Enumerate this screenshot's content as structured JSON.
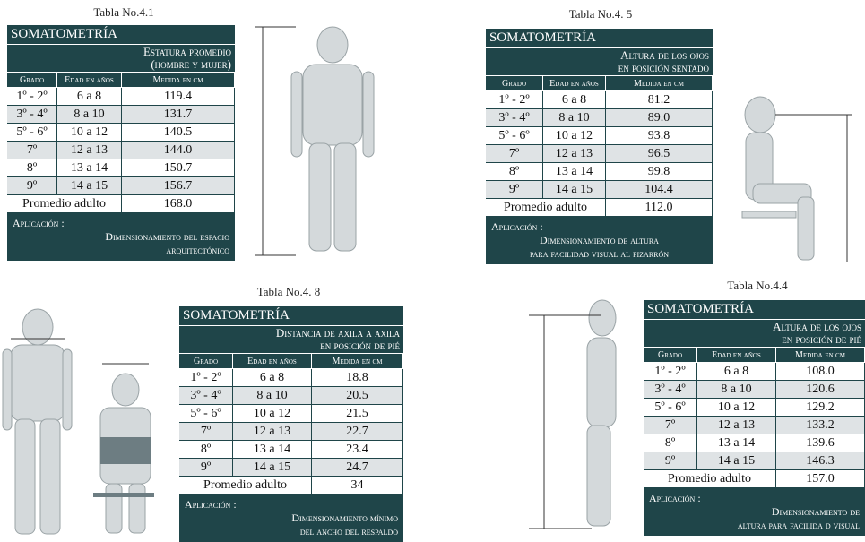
{
  "panels": [
    {
      "caption": "Tabla No.4.1",
      "header": "SOMATOMETRÍA",
      "subtitle": [
        "Estatura promedio",
        "(hombre y mujer)"
      ],
      "columns": [
        "Grado",
        "Edad en años",
        "Medida en cm"
      ],
      "rows": [
        [
          "1º - 2º",
          "6 a 8",
          "119.4"
        ],
        [
          "3º - 4º",
          "8 a 10",
          "131.7"
        ],
        [
          "5º - 6º",
          "10 a 12",
          "140.5"
        ],
        [
          "7º",
          "12 a 13",
          "144.0"
        ],
        [
          "8º",
          "13 a 14",
          "150.7"
        ],
        [
          "9º",
          "14 a 15",
          "156.7"
        ]
      ],
      "adult": [
        "Promedio adulto",
        "168.0"
      ],
      "application_label": "Aplicación :",
      "application": [
        "Dimensionamiento del espacio",
        "arquitectónico"
      ]
    },
    {
      "caption": "Tabla No.4. 5",
      "header": "SOMATOMETRÍA",
      "subtitle": [
        "Altura de los ojos",
        "en posición sentado"
      ],
      "columns": [
        "Grado",
        "Edad en años",
        "Medida en cm"
      ],
      "rows": [
        [
          "1º - 2º",
          "6 a 8",
          "81.2"
        ],
        [
          "3º - 4º",
          "8 a 10",
          "89.0"
        ],
        [
          "5º - 6º",
          "10 a 12",
          "93.8"
        ],
        [
          "7º",
          "12 a 13",
          "96.5"
        ],
        [
          "8º",
          "13 a 14",
          "99.8"
        ],
        [
          "9º",
          "14 a 15",
          "104.4"
        ]
      ],
      "adult": [
        "Promedio adulto",
        "112.0"
      ],
      "application_label": "Aplicación :",
      "application": [
        "Dimensionamiento de altura",
        "para facilidad visual al pizarrón"
      ]
    },
    {
      "caption": "Tabla No.4. 8",
      "header": "SOMATOMETRÍA",
      "subtitle": [
        "Distancia de axila a axila",
        "en posición de pié"
      ],
      "columns": [
        "Grado",
        "Edad en años",
        "Medida en cm"
      ],
      "rows": [
        [
          "1º - 2º",
          "6 a 8",
          "18.8"
        ],
        [
          "3º - 4º",
          "8 a 10",
          "20.5"
        ],
        [
          "5º - 6º",
          "10 a 12",
          "21.5"
        ],
        [
          "7º",
          "12 a 13",
          "22.7"
        ],
        [
          "8º",
          "13 a 14",
          "23.4"
        ],
        [
          "9º",
          "14 a 15",
          "24.7"
        ]
      ],
      "adult": [
        "Promedio adulto",
        "34"
      ],
      "application_label": "Aplicación :",
      "application": [
        "Dimensionamiento mínimo",
        "del ancho del respaldo"
      ]
    },
    {
      "caption": "Tabla No.4.4",
      "header": "SOMATOMETRÍA",
      "subtitle": [
        "Altura de los ojos",
        "en posición de pié"
      ],
      "columns": [
        "Grado",
        "Edad en años",
        "Medida en cm"
      ],
      "rows": [
        [
          "1º - 2º",
          "6 a 8",
          "108.0"
        ],
        [
          "3º - 4º",
          "8 a 10",
          "120.6"
        ],
        [
          "5º - 6º",
          "10 a 12",
          "129.2"
        ],
        [
          "7º",
          "12 a 13",
          "133.2"
        ],
        [
          "8º",
          "13 a 14",
          "139.6"
        ],
        [
          "9º",
          "14 a 15",
          "146.3"
        ]
      ],
      "adult": [
        "Promedio adulto",
        "157.0"
      ],
      "application_label": "Aplicación :",
      "application": [
        "Dimensionamiento de",
        "altura para facilida d visual"
      ]
    }
  ]
}
